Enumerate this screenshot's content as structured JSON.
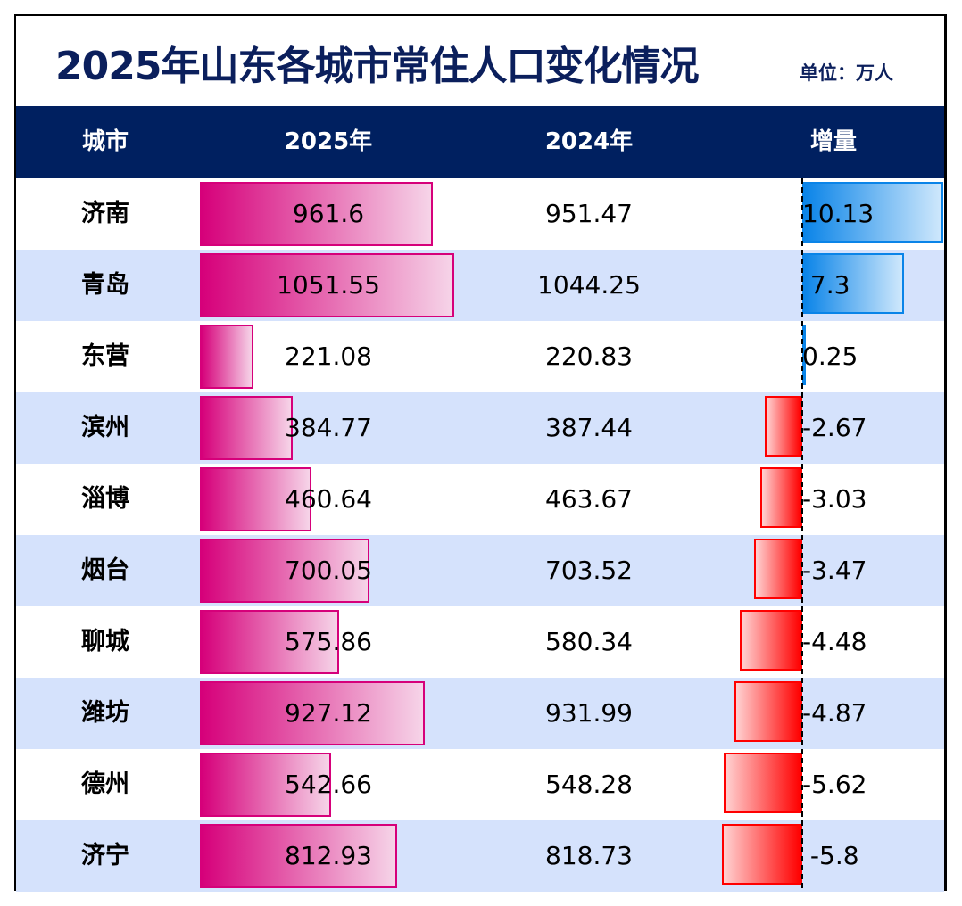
{
  "title": "2025年山东各城市常住人口变化情况",
  "unit": "单位：万人",
  "headers": [
    "城市",
    "2025年",
    "2024年",
    "增量"
  ],
  "colors": {
    "header_bg": "#002060",
    "title": "#0b1f5c",
    "bar_2025": "#d6007a",
    "bar_positive": "#0a84e8",
    "bar_negative": "#ff0000",
    "row_alt": "#d5e2fc"
  },
  "rows": [
    {
      "city": "济南",
      "y2025": "961.6",
      "y2024": "951.47",
      "inc": "10.13"
    },
    {
      "city": "青岛",
      "y2025": "1051.55",
      "y2024": "1044.25",
      "inc": " 7.3"
    },
    {
      "city": "东营",
      "y2025": "221.08",
      "y2024": "220.83",
      "inc": "0.25"
    },
    {
      "city": "滨州",
      "y2025": "384.77",
      "y2024": "387.44",
      "inc": "-2.67"
    },
    {
      "city": "淄博",
      "y2025": "460.64",
      "y2024": "463.67",
      "inc": "-3.03"
    },
    {
      "city": "烟台",
      "y2025": "700.05",
      "y2024": "703.52",
      "inc": "-3.47"
    },
    {
      "city": "聊城",
      "y2025": "575.86",
      "y2024": "580.34",
      "inc": "-4.48"
    },
    {
      "city": "潍坊",
      "y2025": "927.12",
      "y2024": "931.99",
      "inc": "-4.87"
    },
    {
      "city": "德州",
      "y2025": "542.66",
      "y2024": "548.28",
      "inc": "-5.62"
    },
    {
      "city": "济宁",
      "y2025": "812.93",
      "y2024": "818.73",
      "inc": " -5.8"
    }
  ]
}
